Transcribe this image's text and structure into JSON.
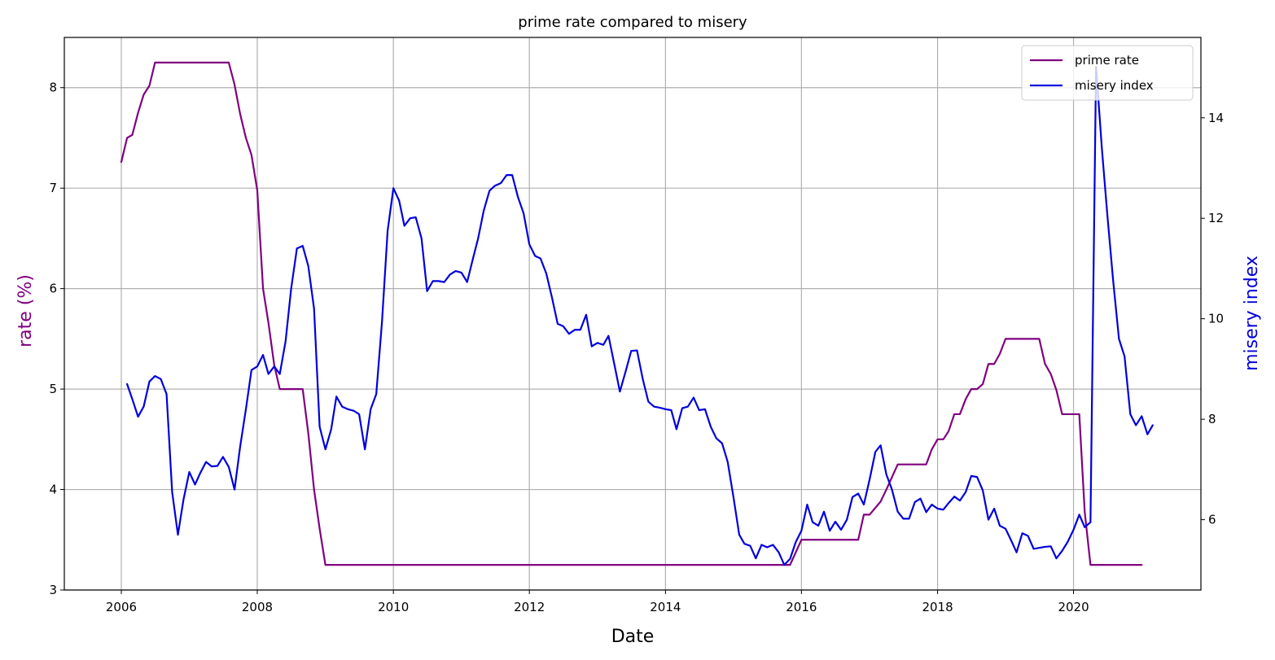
{
  "chart_data": {
    "type": "line",
    "title": "prime rate compared to misery",
    "xlabel": "Date",
    "ylabel": "rate (%)",
    "y2label": "misery index",
    "xlim": [
      "2005-03-01",
      "2021-11-15"
    ],
    "ylim": [
      3,
      8.5
    ],
    "y2lim": [
      4.6,
      15.6
    ],
    "x_ticks": [
      "2006",
      "2008",
      "2010",
      "2012",
      "2014",
      "2016",
      "2018",
      "2020"
    ],
    "y_ticks": [
      "3",
      "4",
      "5",
      "6",
      "7",
      "8"
    ],
    "y2_ticks": [
      "6",
      "8",
      "10",
      "12",
      "14"
    ],
    "grid": true,
    "legend_position": "upper right",
    "colors": {
      "prime_rate": "#800080",
      "misery_index": "#0000dd",
      "grid": "#b0b0b0",
      "axis_left_label": "#800080",
      "axis_right_label": "#0000dd"
    },
    "series": [
      {
        "name": "prime rate",
        "axis": "left",
        "points": [
          [
            "2006-01-01",
            7.26
          ],
          [
            "2006-02-01",
            7.5
          ],
          [
            "2006-03-01",
            7.53
          ],
          [
            "2006-04-01",
            7.75
          ],
          [
            "2006-05-01",
            7.93
          ],
          [
            "2006-06-01",
            8.02
          ],
          [
            "2006-07-01",
            8.25
          ],
          [
            "2007-08-01",
            8.25
          ],
          [
            "2007-09-01",
            8.03
          ],
          [
            "2007-10-01",
            7.74
          ],
          [
            "2007-11-01",
            7.5
          ],
          [
            "2007-12-01",
            7.33
          ],
          [
            "2008-01-01",
            6.98
          ],
          [
            "2008-02-01",
            6.0
          ],
          [
            "2008-03-01",
            5.66
          ],
          [
            "2008-04-01",
            5.24
          ],
          [
            "2008-05-01",
            5.0
          ],
          [
            "2008-09-01",
            5.0
          ],
          [
            "2008-10-01",
            4.56
          ],
          [
            "2008-11-01",
            4.0
          ],
          [
            "2008-12-01",
            3.61
          ],
          [
            "2009-01-01",
            3.25
          ],
          [
            "2015-11-01",
            3.25
          ],
          [
            "2016-01-01",
            3.5
          ],
          [
            "2016-11-01",
            3.5
          ],
          [
            "2016-12-01",
            3.75
          ],
          [
            "2017-01-01",
            3.75
          ],
          [
            "2017-03-01",
            3.88
          ],
          [
            "2017-04-01",
            4.0
          ],
          [
            "2017-06-01",
            4.25
          ],
          [
            "2017-11-01",
            4.25
          ],
          [
            "2017-12-01",
            4.4
          ],
          [
            "2018-01-01",
            4.5
          ],
          [
            "2018-02-01",
            4.5
          ],
          [
            "2018-03-01",
            4.58
          ],
          [
            "2018-04-01",
            4.75
          ],
          [
            "2018-05-01",
            4.75
          ],
          [
            "2018-06-01",
            4.9
          ],
          [
            "2018-07-01",
            5.0
          ],
          [
            "2018-08-01",
            5.0
          ],
          [
            "2018-09-01",
            5.05
          ],
          [
            "2018-10-01",
            5.25
          ],
          [
            "2018-11-01",
            5.25
          ],
          [
            "2018-12-01",
            5.35
          ],
          [
            "2019-01-01",
            5.5
          ],
          [
            "2019-07-01",
            5.5
          ],
          [
            "2019-08-01",
            5.25
          ],
          [
            "2019-09-01",
            5.15
          ],
          [
            "2019-10-01",
            4.99
          ],
          [
            "2019-11-01",
            4.75
          ],
          [
            "2020-02-01",
            4.75
          ],
          [
            "2020-03-01",
            3.78
          ],
          [
            "2020-04-01",
            3.25
          ],
          [
            "2021-01-01",
            3.25
          ]
        ]
      },
      {
        "name": "misery index",
        "axis": "right",
        "points": [
          [
            "2006-02-01",
            8.7
          ],
          [
            "2006-03-01",
            8.4
          ],
          [
            "2006-04-01",
            8.05
          ],
          [
            "2006-05-01",
            8.25
          ],
          [
            "2006-06-01",
            8.75
          ],
          [
            "2006-07-01",
            8.86
          ],
          [
            "2006-08-01",
            8.8
          ],
          [
            "2006-09-01",
            8.5
          ],
          [
            "2006-10-01",
            6.55
          ],
          [
            "2006-11-01",
            5.7
          ],
          [
            "2006-12-01",
            6.4
          ],
          [
            "2007-01-01",
            6.95
          ],
          [
            "2007-02-01",
            6.7
          ],
          [
            "2007-03-01",
            6.93
          ],
          [
            "2007-04-01",
            7.15
          ],
          [
            "2007-05-01",
            7.06
          ],
          [
            "2007-06-01",
            7.07
          ],
          [
            "2007-07-01",
            7.25
          ],
          [
            "2007-08-01",
            7.05
          ],
          [
            "2007-09-01",
            6.6
          ],
          [
            "2007-10-01",
            7.45
          ],
          [
            "2007-11-01",
            8.2
          ],
          [
            "2007-12-01",
            8.98
          ],
          [
            "2008-01-01",
            9.05
          ],
          [
            "2008-02-01",
            9.28
          ],
          [
            "2008-03-01",
            8.9
          ],
          [
            "2008-04-01",
            9.05
          ],
          [
            "2008-05-01",
            8.9
          ],
          [
            "2008-06-01",
            9.55
          ],
          [
            "2008-07-01",
            10.6
          ],
          [
            "2008-08-01",
            11.4
          ],
          [
            "2008-09-01",
            11.45
          ],
          [
            "2008-10-01",
            11.05
          ],
          [
            "2008-11-01",
            10.2
          ],
          [
            "2008-12-01",
            7.85
          ],
          [
            "2009-01-01",
            7.4
          ],
          [
            "2009-02-01",
            7.8
          ],
          [
            "2009-03-01",
            8.45
          ],
          [
            "2009-04-01",
            8.25
          ],
          [
            "2009-05-01",
            8.2
          ],
          [
            "2009-06-01",
            8.17
          ],
          [
            "2009-07-01",
            8.1
          ],
          [
            "2009-08-01",
            7.4
          ],
          [
            "2009-09-01",
            8.2
          ],
          [
            "2009-10-01",
            8.5
          ],
          [
            "2009-11-01",
            9.95
          ],
          [
            "2009-12-01",
            11.75
          ],
          [
            "2010-01-01",
            12.6
          ],
          [
            "2010-02-01",
            12.35
          ],
          [
            "2010-03-01",
            11.85
          ],
          [
            "2010-04-01",
            12.0
          ],
          [
            "2010-05-01",
            12.02
          ],
          [
            "2010-06-01",
            11.6
          ],
          [
            "2010-07-01",
            10.55
          ],
          [
            "2010-08-01",
            10.75
          ],
          [
            "2010-09-01",
            10.75
          ],
          [
            "2010-10-01",
            10.73
          ],
          [
            "2010-11-01",
            10.88
          ],
          [
            "2010-12-01",
            10.95
          ],
          [
            "2011-01-01",
            10.92
          ],
          [
            "2011-02-01",
            10.73
          ],
          [
            "2011-03-01",
            11.15
          ],
          [
            "2011-04-01",
            11.6
          ],
          [
            "2011-05-01",
            12.15
          ],
          [
            "2011-06-01",
            12.55
          ],
          [
            "2011-07-01",
            12.65
          ],
          [
            "2011-08-01",
            12.7
          ],
          [
            "2011-09-01",
            12.86
          ],
          [
            "2011-10-01",
            12.86
          ],
          [
            "2011-11-01",
            12.42
          ],
          [
            "2011-12-01",
            12.1
          ],
          [
            "2012-01-01",
            11.48
          ],
          [
            "2012-02-01",
            11.25
          ],
          [
            "2012-03-01",
            11.2
          ],
          [
            "2012-04-01",
            10.9
          ],
          [
            "2012-05-01",
            10.43
          ],
          [
            "2012-06-01",
            9.9
          ],
          [
            "2012-07-01",
            9.85
          ],
          [
            "2012-08-01",
            9.7
          ],
          [
            "2012-09-01",
            9.78
          ],
          [
            "2012-10-01",
            9.78
          ],
          [
            "2012-11-01",
            10.08
          ],
          [
            "2012-12-01",
            9.45
          ],
          [
            "2013-01-01",
            9.52
          ],
          [
            "2013-02-01",
            9.48
          ],
          [
            "2013-03-01",
            9.66
          ],
          [
            "2013-04-01",
            9.1
          ],
          [
            "2013-05-01",
            8.55
          ],
          [
            "2013-06-01",
            8.95
          ],
          [
            "2013-07-01",
            9.36
          ],
          [
            "2013-08-01",
            9.37
          ],
          [
            "2013-09-01",
            8.8
          ],
          [
            "2013-10-01",
            8.35
          ],
          [
            "2013-11-01",
            8.25
          ],
          [
            "2013-12-01",
            8.23
          ],
          [
            "2014-01-01",
            8.2
          ],
          [
            "2014-02-01",
            8.18
          ],
          [
            "2014-03-01",
            7.8
          ],
          [
            "2014-04-01",
            8.22
          ],
          [
            "2014-05-01",
            8.25
          ],
          [
            "2014-06-01",
            8.43
          ],
          [
            "2014-07-01",
            8.18
          ],
          [
            "2014-08-01",
            8.2
          ],
          [
            "2014-09-01",
            7.85
          ],
          [
            "2014-10-01",
            7.62
          ],
          [
            "2014-11-01",
            7.52
          ],
          [
            "2014-12-01",
            7.15
          ],
          [
            "2015-01-01",
            6.45
          ],
          [
            "2015-02-01",
            5.7
          ],
          [
            "2015-03-01",
            5.52
          ],
          [
            "2015-04-01",
            5.48
          ],
          [
            "2015-05-01",
            5.23
          ],
          [
            "2015-06-01",
            5.5
          ],
          [
            "2015-07-01",
            5.45
          ],
          [
            "2015-08-01",
            5.5
          ],
          [
            "2015-09-01",
            5.35
          ],
          [
            "2015-10-01",
            5.1
          ],
          [
            "2015-11-01",
            5.22
          ],
          [
            "2015-12-01",
            5.55
          ],
          [
            "2016-01-01",
            5.78
          ],
          [
            "2016-02-01",
            6.3
          ],
          [
            "2016-03-01",
            5.95
          ],
          [
            "2016-04-01",
            5.88
          ],
          [
            "2016-05-01",
            6.16
          ],
          [
            "2016-06-01",
            5.78
          ],
          [
            "2016-07-01",
            5.96
          ],
          [
            "2016-08-01",
            5.8
          ],
          [
            "2016-09-01",
            6.0
          ],
          [
            "2016-10-01",
            6.45
          ],
          [
            "2016-11-01",
            6.52
          ],
          [
            "2016-12-01",
            6.3
          ],
          [
            "2017-01-01",
            6.8
          ],
          [
            "2017-02-01",
            7.35
          ],
          [
            "2017-03-01",
            7.48
          ],
          [
            "2017-04-01",
            6.9
          ],
          [
            "2017-05-01",
            6.6
          ],
          [
            "2017-06-01",
            6.16
          ],
          [
            "2017-07-01",
            6.02
          ],
          [
            "2017-08-01",
            6.02
          ],
          [
            "2017-09-01",
            6.35
          ],
          [
            "2017-10-01",
            6.42
          ],
          [
            "2017-11-01",
            6.15
          ],
          [
            "2017-12-01",
            6.3
          ],
          [
            "2018-01-01",
            6.22
          ],
          [
            "2018-02-01",
            6.2
          ],
          [
            "2018-03-01",
            6.33
          ],
          [
            "2018-04-01",
            6.46
          ],
          [
            "2018-05-01",
            6.38
          ],
          [
            "2018-06-01",
            6.55
          ],
          [
            "2018-07-01",
            6.87
          ],
          [
            "2018-08-01",
            6.85
          ],
          [
            "2018-09-01",
            6.58
          ],
          [
            "2018-10-01",
            6.0
          ],
          [
            "2018-11-01",
            6.22
          ],
          [
            "2018-12-01",
            5.88
          ],
          [
            "2019-01-01",
            5.82
          ],
          [
            "2019-02-01",
            5.58
          ],
          [
            "2019-03-01",
            5.35
          ],
          [
            "2019-04-01",
            5.73
          ],
          [
            "2019-05-01",
            5.68
          ],
          [
            "2019-06-01",
            5.42
          ],
          [
            "2019-07-01",
            5.44
          ],
          [
            "2019-08-01",
            5.46
          ],
          [
            "2019-09-01",
            5.47
          ],
          [
            "2019-10-01",
            5.23
          ],
          [
            "2019-11-01",
            5.38
          ],
          [
            "2019-12-01",
            5.56
          ],
          [
            "2020-01-01",
            5.8
          ],
          [
            "2020-02-01",
            6.1
          ],
          [
            "2020-03-01",
            5.85
          ],
          [
            "2020-04-01",
            5.95
          ],
          [
            "2020-05-01",
            15.02
          ],
          [
            "2020-06-01",
            13.4
          ],
          [
            "2020-07-01",
            12.05
          ],
          [
            "2020-08-01",
            10.75
          ],
          [
            "2020-09-01",
            9.6
          ],
          [
            "2020-10-01",
            9.25
          ],
          [
            "2020-11-01",
            8.1
          ],
          [
            "2020-12-01",
            7.88
          ],
          [
            "2021-01-01",
            8.06
          ],
          [
            "2021-02-01",
            7.7
          ],
          [
            "2021-03-01",
            7.88
          ]
        ]
      }
    ]
  }
}
